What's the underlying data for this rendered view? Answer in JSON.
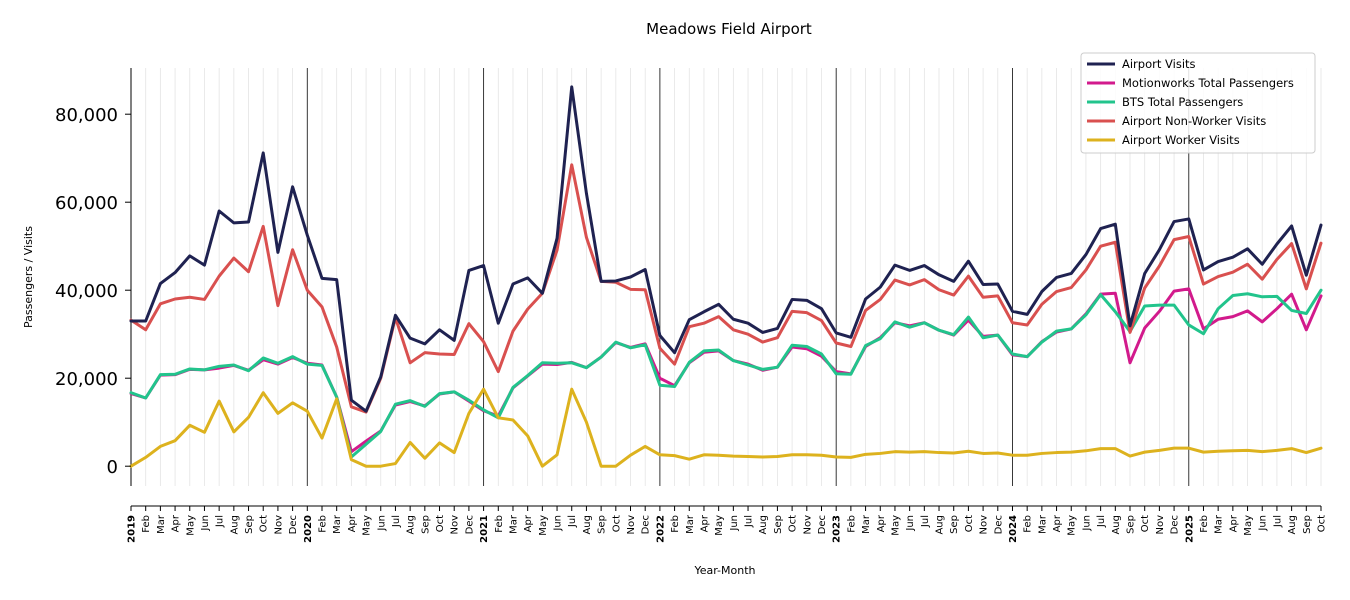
{
  "chart_data": {
    "type": "line",
    "title": "Meadows Field Airport",
    "xlabel": "Year-Month",
    "ylabel": "Passengers / Visits",
    "ylim": [
      -4500,
      90500
    ],
    "yticks": [
      0,
      20000,
      40000,
      60000,
      80000
    ],
    "ytick_labels": [
      "0",
      "20,000",
      "40,000",
      "60,000",
      "80,000"
    ],
    "grid": true,
    "legend_position": "top-right",
    "x": [
      "2019-01",
      "2019-02",
      "2019-03",
      "2019-04",
      "2019-05",
      "2019-06",
      "2019-07",
      "2019-08",
      "2019-09",
      "2019-10",
      "2019-11",
      "2019-12",
      "2020-01",
      "2020-02",
      "2020-03",
      "2020-04",
      "2020-05",
      "2020-06",
      "2020-07",
      "2020-08",
      "2020-09",
      "2020-10",
      "2020-11",
      "2020-12",
      "2021-01",
      "2021-02",
      "2021-03",
      "2021-04",
      "2021-05",
      "2021-06",
      "2021-07",
      "2021-08",
      "2021-09",
      "2021-10",
      "2021-11",
      "2021-12",
      "2022-01",
      "2022-02",
      "2022-03",
      "2022-04",
      "2022-05",
      "2022-06",
      "2022-07",
      "2022-08",
      "2022-09",
      "2022-10",
      "2022-11",
      "2022-12",
      "2023-01",
      "2023-02",
      "2023-03",
      "2023-04",
      "2023-05",
      "2023-06",
      "2023-07",
      "2023-08",
      "2023-09",
      "2023-10",
      "2023-11",
      "2023-12",
      "2024-01",
      "2024-02",
      "2024-03",
      "2024-04",
      "2024-05",
      "2024-06",
      "2024-07",
      "2024-08",
      "2024-09",
      "2024-10",
      "2024-11",
      "2024-12",
      "2025-01",
      "2025-02",
      "2025-03",
      "2025-04",
      "2025-05",
      "2025-06",
      "2025-07",
      "2025-08",
      "2025-09",
      "2025-10"
    ],
    "x_tick_labels": [
      "2019",
      "Feb",
      "Mar",
      "Apr",
      "May",
      "Jun",
      "Jul",
      "Aug",
      "Sep",
      "Oct",
      "Nov",
      "Dec",
      "2020",
      "Feb",
      "Mar",
      "Apr",
      "May",
      "Jun",
      "Jul",
      "Aug",
      "Sep",
      "Oct",
      "Nov",
      "Dec",
      "2021",
      "Feb",
      "Mar",
      "Apr",
      "May",
      "Jun",
      "Jul",
      "Aug",
      "Sep",
      "Oct",
      "Nov",
      "Dec",
      "2022",
      "Feb",
      "Mar",
      "Apr",
      "May",
      "Jun",
      "Jul",
      "Aug",
      "Sep",
      "Oct",
      "Nov",
      "Dec",
      "2023",
      "Feb",
      "Mar",
      "Apr",
      "May",
      "Jun",
      "Jul",
      "Aug",
      "Sep",
      "Oct",
      "Nov",
      "Dec",
      "2024",
      "Feb",
      "Mar",
      "Apr",
      "May",
      "Jun",
      "Jul",
      "Aug",
      "Sep",
      "Oct",
      "Nov",
      "Dec",
      "2025",
      "Feb",
      "Mar",
      "Apr",
      "May",
      "Jun",
      "Jul",
      "Aug",
      "Sep",
      "Oct"
    ],
    "series": [
      {
        "name": "Airport Visits",
        "color": "#1f2251",
        "values": [
          33000,
          33000,
          41500,
          44000,
          47800,
          45700,
          58000,
          55300,
          55500,
          71200,
          48600,
          63500,
          52500,
          42700,
          42400,
          15000,
          12500,
          20300,
          34300,
          29100,
          27800,
          31000,
          28600,
          44500,
          45600,
          32500,
          41400,
          42800,
          39300,
          51800,
          86200,
          62000,
          42000,
          42100,
          43000,
          44700,
          29700,
          25800,
          33300,
          35100,
          36800,
          33400,
          32500,
          30400,
          31300,
          37900,
          37700,
          35800,
          30300,
          29300,
          38000,
          40700,
          45700,
          44500,
          45600,
          43500,
          42000,
          46600,
          41300,
          41400,
          35200,
          34500,
          39700,
          42900,
          43800,
          48100,
          54000,
          55000,
          31900,
          43800,
          49200,
          55600,
          56200,
          44600,
          46500,
          47500,
          49400,
          45900,
          50500,
          54600,
          43400,
          54800
        ]
      },
      {
        "name": "Motionworks Total Passengers",
        "color": "#d21a8c",
        "values": [
          16500,
          15500,
          20700,
          20800,
          22000,
          21900,
          22300,
          22900,
          21800,
          24200,
          23200,
          24700,
          23400,
          23000,
          15700,
          3300,
          5700,
          8000,
          13900,
          14700,
          13700,
          16400,
          16900,
          14800,
          12600,
          11400,
          17800,
          20500,
          23200,
          23100,
          23600,
          22400,
          24800,
          28100,
          27000,
          27800,
          20000,
          18300,
          23500,
          25900,
          26200,
          24000,
          23200,
          21800,
          22500,
          27100,
          26700,
          25000,
          21500,
          21000,
          27200,
          29200,
          32600,
          31900,
          32600,
          30900,
          29800,
          33200,
          29500,
          29800,
          25300,
          24900,
          28300,
          30500,
          31200,
          34600,
          39100,
          39300,
          23500,
          31400,
          35200,
          39800,
          40300,
          31200,
          33400,
          34000,
          35300,
          32800,
          35800,
          39100,
          31000,
          38700
        ]
      },
      {
        "name": "BTS Total Passengers",
        "color": "#22c48c",
        "values": [
          16700,
          15500,
          20800,
          20900,
          22100,
          21900,
          22700,
          23000,
          21700,
          24600,
          23400,
          24900,
          23200,
          22900,
          15700,
          2100,
          5000,
          7900,
          14100,
          14900,
          13600,
          16500,
          16900,
          15000,
          12800,
          11000,
          17900,
          20600,
          23500,
          23400,
          23500,
          22400,
          24800,
          28200,
          26900,
          27600,
          18400,
          18100,
          23600,
          26200,
          26400,
          24000,
          23000,
          22000,
          22500,
          27500,
          27200,
          25500,
          21000,
          20900,
          27400,
          29000,
          32800,
          31600,
          32600,
          30900,
          29900,
          33900,
          29200,
          29800,
          25500,
          24900,
          28200,
          30700,
          31200,
          34400,
          39000,
          35100,
          30600,
          36400,
          36600,
          36600,
          32100,
          30100,
          35800,
          38800,
          39200,
          38500,
          38600,
          35400,
          34700,
          40000
        ]
      },
      {
        "name": "Airport Non-Worker Visits",
        "color": "#d9504f",
        "values": [
          33200,
          31000,
          36900,
          38000,
          38400,
          37900,
          43200,
          47300,
          44200,
          54500,
          36500,
          49200,
          40000,
          36200,
          27100,
          13500,
          12300,
          20000,
          33800,
          23500,
          25800,
          25500,
          25400,
          32400,
          28300,
          21500,
          30700,
          35700,
          39300,
          49100,
          68500,
          52000,
          42000,
          41800,
          40200,
          40100,
          26800,
          23200,
          31700,
          32500,
          34000,
          31000,
          30000,
          28200,
          29200,
          35200,
          34900,
          33100,
          28000,
          27200,
          35400,
          37900,
          42300,
          41200,
          42400,
          40100,
          38900,
          43200,
          38400,
          38700,
          32600,
          32100,
          36800,
          39700,
          40600,
          44600,
          50000,
          50900,
          30400,
          40500,
          45500,
          51500,
          52200,
          41400,
          43100,
          44100,
          45900,
          42500,
          47000,
          50600,
          40300,
          50700
        ]
      },
      {
        "name": "Airport Worker Visits",
        "color": "#ddb21e",
        "values": [
          0,
          2000,
          4500,
          5800,
          9300,
          7700,
          14800,
          7800,
          11100,
          16700,
          12000,
          14400,
          12500,
          6400,
          15300,
          1500,
          0,
          0,
          600,
          5400,
          1800,
          5300,
          3100,
          12000,
          17500,
          11000,
          10500,
          6900,
          0,
          2600,
          17500,
          10000,
          0,
          0,
          2500,
          4500,
          2600,
          2400,
          1600,
          2600,
          2500,
          2300,
          2200,
          2100,
          2200,
          2600,
          2600,
          2500,
          2100,
          2000,
          2700,
          2900,
          3300,
          3200,
          3300,
          3100,
          3000,
          3400,
          2900,
          3000,
          2500,
          2500,
          2900,
          3100,
          3200,
          3500,
          4000,
          4000,
          2300,
          3200,
          3600,
          4100,
          4100,
          3200,
          3400,
          3500,
          3600,
          3300,
          3600,
          4000,
          3100,
          4100
        ]
      }
    ]
  }
}
